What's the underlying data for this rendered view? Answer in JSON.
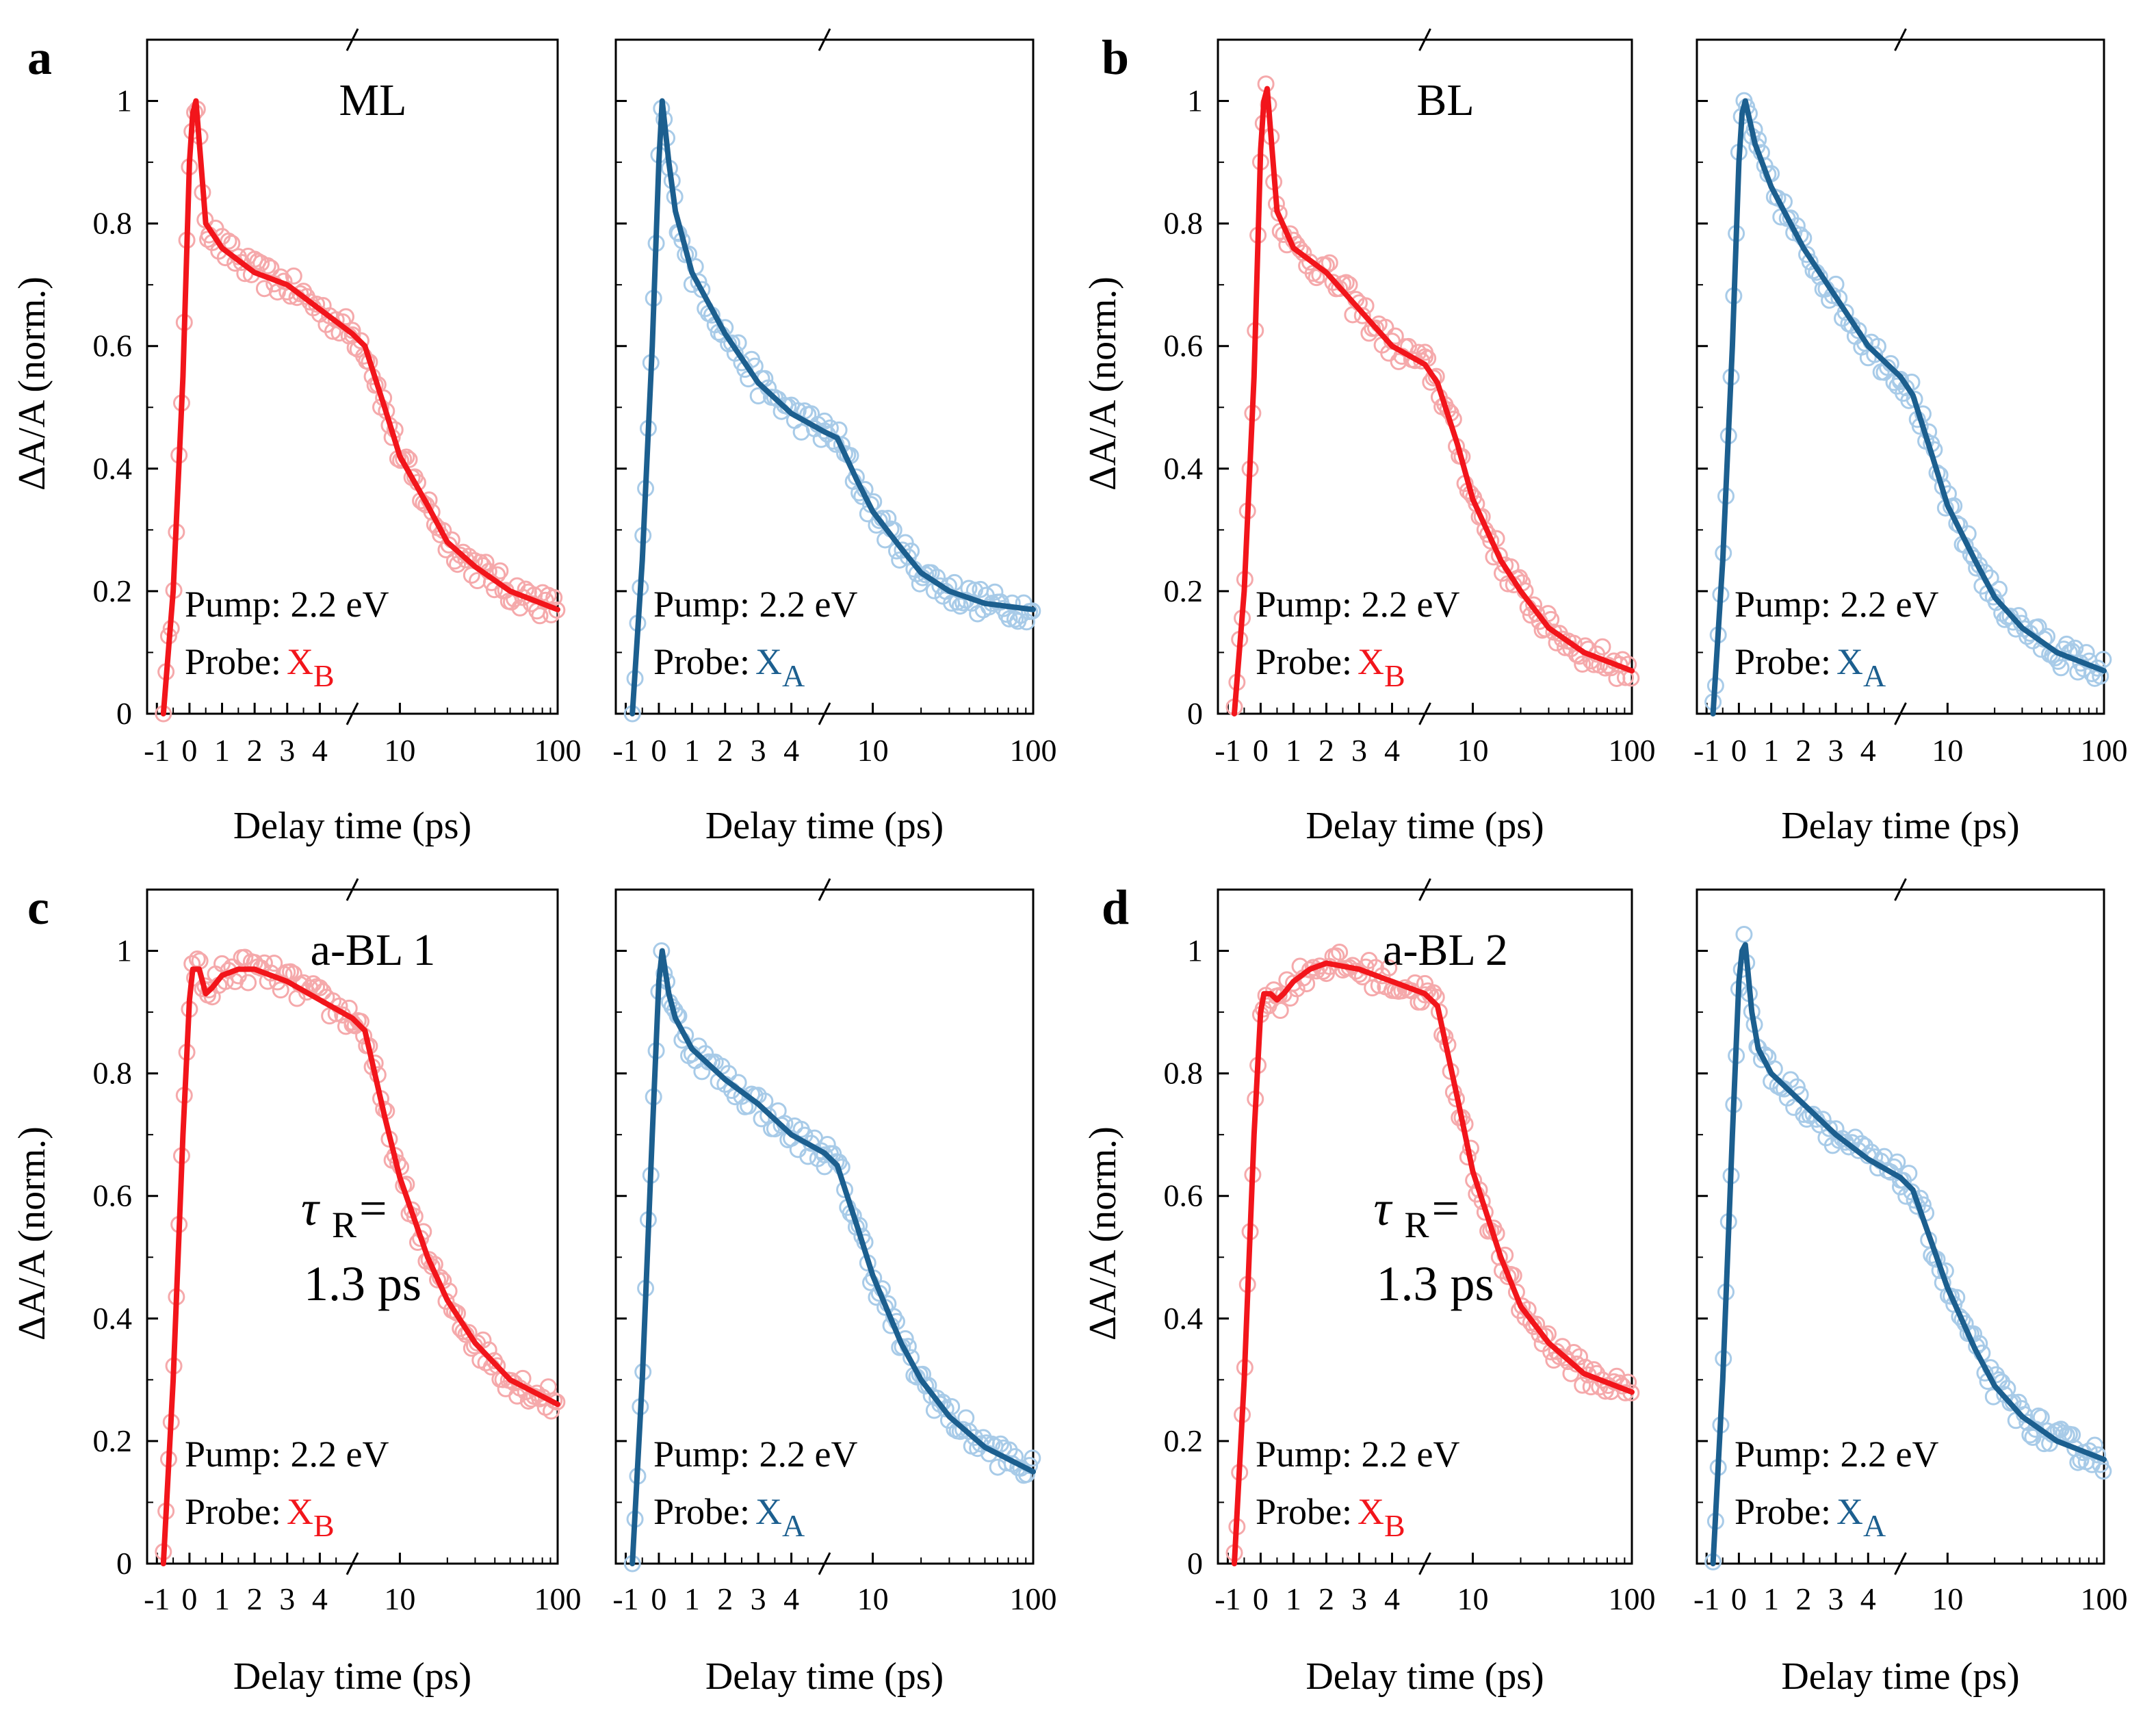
{
  "colors": {
    "red_line": "#f2151b",
    "red_marker": "#f5a9ab",
    "blue_line": "#1c5f8f",
    "blue_marker": "#a8cbe8"
  },
  "figure": {
    "x_label": "Delay time (ps)",
    "y_label": "ΔA/A (norm.)",
    "pump_text": "Pump: 2.2 eV",
    "probe_text": "Probe: ",
    "probe_b_main": "X",
    "probe_b_sub": "B",
    "probe_a_main": "X",
    "probe_a_sub": "A",
    "x_ticks_linear": [
      "-1",
      "0",
      "1",
      "2",
      "3",
      "4"
    ],
    "x_ticks_log": [
      "10",
      "100"
    ],
    "y_ticks": [
      "0",
      "0.2",
      "0.4",
      "0.6",
      "0.8",
      "1"
    ],
    "tau_symbol": "τ",
    "tau_sub": "R",
    "tau_eq": " =",
    "tau_value": "1.3 ps"
  },
  "chart_data": [
    {
      "panel": "a",
      "title": "ML",
      "type": "line+scatter",
      "subplots": [
        {
          "probe": "X_B",
          "color": "red",
          "points": [
            [
              -0.8,
              0
            ],
            [
              -0.5,
              0.2
            ],
            [
              -0.2,
              0.55
            ],
            [
              0,
              0.9
            ],
            [
              0.1,
              0.98
            ],
            [
              0.2,
              1.0
            ],
            [
              0.35,
              0.9
            ],
            [
              0.5,
              0.8
            ],
            [
              1,
              0.76
            ],
            [
              2,
              0.72
            ],
            [
              3,
              0.7
            ],
            [
              4,
              0.66
            ],
            [
              5,
              0.62
            ],
            [
              6,
              0.6
            ],
            [
              8,
              0.5
            ],
            [
              10,
              0.42
            ],
            [
              15,
              0.34
            ],
            [
              20,
              0.28
            ],
            [
              30,
              0.24
            ],
            [
              50,
              0.2
            ],
            [
              100,
              0.17
            ]
          ]
        },
        {
          "probe": "X_A",
          "color": "blue",
          "points": [
            [
              -0.8,
              0
            ],
            [
              -0.5,
              0.25
            ],
            [
              -0.2,
              0.6
            ],
            [
              0,
              0.9
            ],
            [
              0.1,
              1.0
            ],
            [
              0.3,
              0.9
            ],
            [
              0.5,
              0.82
            ],
            [
              1,
              0.72
            ],
            [
              2,
              0.62
            ],
            [
              3,
              0.54
            ],
            [
              4,
              0.49
            ],
            [
              5,
              0.46
            ],
            [
              6,
              0.45
            ],
            [
              8,
              0.38
            ],
            [
              10,
              0.33
            ],
            [
              15,
              0.27
            ],
            [
              20,
              0.23
            ],
            [
              30,
              0.2
            ],
            [
              50,
              0.18
            ],
            [
              100,
              0.17
            ]
          ]
        }
      ]
    },
    {
      "panel": "b",
      "title": "BL",
      "type": "line+scatter",
      "subplots": [
        {
          "probe": "X_B",
          "color": "red",
          "points": [
            [
              -0.8,
              0
            ],
            [
              -0.5,
              0.2
            ],
            [
              -0.2,
              0.55
            ],
            [
              0,
              0.92
            ],
            [
              0.1,
              1.0
            ],
            [
              0.2,
              1.02
            ],
            [
              0.35,
              0.92
            ],
            [
              0.5,
              0.82
            ],
            [
              1,
              0.76
            ],
            [
              2,
              0.72
            ],
            [
              3,
              0.66
            ],
            [
              4,
              0.6
            ],
            [
              5,
              0.57
            ],
            [
              6,
              0.54
            ],
            [
              8,
              0.44
            ],
            [
              10,
              0.35
            ],
            [
              15,
              0.25
            ],
            [
              20,
              0.2
            ],
            [
              30,
              0.14
            ],
            [
              50,
              0.1
            ],
            [
              100,
              0.07
            ]
          ]
        },
        {
          "probe": "X_A",
          "color": "blue",
          "points": [
            [
              -0.8,
              0
            ],
            [
              -0.5,
              0.25
            ],
            [
              -0.2,
              0.6
            ],
            [
              0,
              0.9
            ],
            [
              0.1,
              0.98
            ],
            [
              0.2,
              1.0
            ],
            [
              0.5,
              0.93
            ],
            [
              1,
              0.86
            ],
            [
              2,
              0.76
            ],
            [
              3,
              0.68
            ],
            [
              4,
              0.6
            ],
            [
              5,
              0.55
            ],
            [
              6,
              0.52
            ],
            [
              8,
              0.42
            ],
            [
              10,
              0.34
            ],
            [
              15,
              0.25
            ],
            [
              20,
              0.19
            ],
            [
              30,
              0.14
            ],
            [
              50,
              0.1
            ],
            [
              100,
              0.07
            ]
          ]
        }
      ]
    },
    {
      "panel": "c",
      "title": "a-BL 1",
      "type": "line+scatter",
      "subplots": [
        {
          "probe": "X_B",
          "color": "red",
          "points": [
            [
              -0.8,
              0
            ],
            [
              -0.5,
              0.3
            ],
            [
              -0.2,
              0.7
            ],
            [
              0,
              0.92
            ],
            [
              0.1,
              0.97
            ],
            [
              0.3,
              0.97
            ],
            [
              0.5,
              0.93
            ],
            [
              0.7,
              0.94
            ],
            [
              1,
              0.96
            ],
            [
              1.5,
              0.97
            ],
            [
              2,
              0.97
            ],
            [
              3,
              0.95
            ],
            [
              4,
              0.92
            ],
            [
              5,
              0.89
            ],
            [
              6,
              0.87
            ],
            [
              8,
              0.73
            ],
            [
              10,
              0.63
            ],
            [
              15,
              0.5
            ],
            [
              20,
              0.43
            ],
            [
              30,
              0.36
            ],
            [
              50,
              0.3
            ],
            [
              100,
              0.26
            ]
          ]
        },
        {
          "probe": "X_A",
          "color": "blue",
          "points": [
            [
              -0.8,
              0
            ],
            [
              -0.5,
              0.3
            ],
            [
              -0.2,
              0.7
            ],
            [
              0,
              0.95
            ],
            [
              0.1,
              1.0
            ],
            [
              0.3,
              0.93
            ],
            [
              0.5,
              0.89
            ],
            [
              1,
              0.84
            ],
            [
              2,
              0.79
            ],
            [
              3,
              0.75
            ],
            [
              4,
              0.7
            ],
            [
              5,
              0.67
            ],
            [
              6,
              0.65
            ],
            [
              8,
              0.55
            ],
            [
              10,
              0.47
            ],
            [
              15,
              0.36
            ],
            [
              20,
              0.3
            ],
            [
              30,
              0.24
            ],
            [
              50,
              0.19
            ],
            [
              100,
              0.15
            ]
          ]
        }
      ]
    },
    {
      "panel": "d",
      "title": "a-BL 2",
      "type": "line+scatter",
      "subplots": [
        {
          "probe": "X_B",
          "color": "red",
          "points": [
            [
              -0.8,
              0
            ],
            [
              -0.5,
              0.3
            ],
            [
              -0.2,
              0.7
            ],
            [
              0,
              0.9
            ],
            [
              0.1,
              0.93
            ],
            [
              0.3,
              0.93
            ],
            [
              0.5,
              0.92
            ],
            [
              0.7,
              0.93
            ],
            [
              1,
              0.95
            ],
            [
              1.5,
              0.97
            ],
            [
              2,
              0.98
            ],
            [
              3,
              0.97
            ],
            [
              4,
              0.95
            ],
            [
              5,
              0.93
            ],
            [
              6,
              0.91
            ],
            [
              8,
              0.76
            ],
            [
              10,
              0.64
            ],
            [
              15,
              0.5
            ],
            [
              20,
              0.42
            ],
            [
              30,
              0.36
            ],
            [
              50,
              0.31
            ],
            [
              100,
              0.28
            ]
          ]
        },
        {
          "probe": "X_A",
          "color": "blue",
          "points": [
            [
              -0.8,
              0
            ],
            [
              -0.5,
              0.3
            ],
            [
              -0.2,
              0.7
            ],
            [
              0,
              0.95
            ],
            [
              0.1,
              1.0
            ],
            [
              0.2,
              1.01
            ],
            [
              0.4,
              0.9
            ],
            [
              0.6,
              0.84
            ],
            [
              1,
              0.8
            ],
            [
              2,
              0.75
            ],
            [
              3,
              0.7
            ],
            [
              4,
              0.66
            ],
            [
              5,
              0.63
            ],
            [
              6,
              0.61
            ],
            [
              8,
              0.52
            ],
            [
              10,
              0.45
            ],
            [
              15,
              0.35
            ],
            [
              20,
              0.29
            ],
            [
              30,
              0.24
            ],
            [
              50,
              0.2
            ],
            [
              100,
              0.17
            ]
          ]
        }
      ]
    }
  ]
}
